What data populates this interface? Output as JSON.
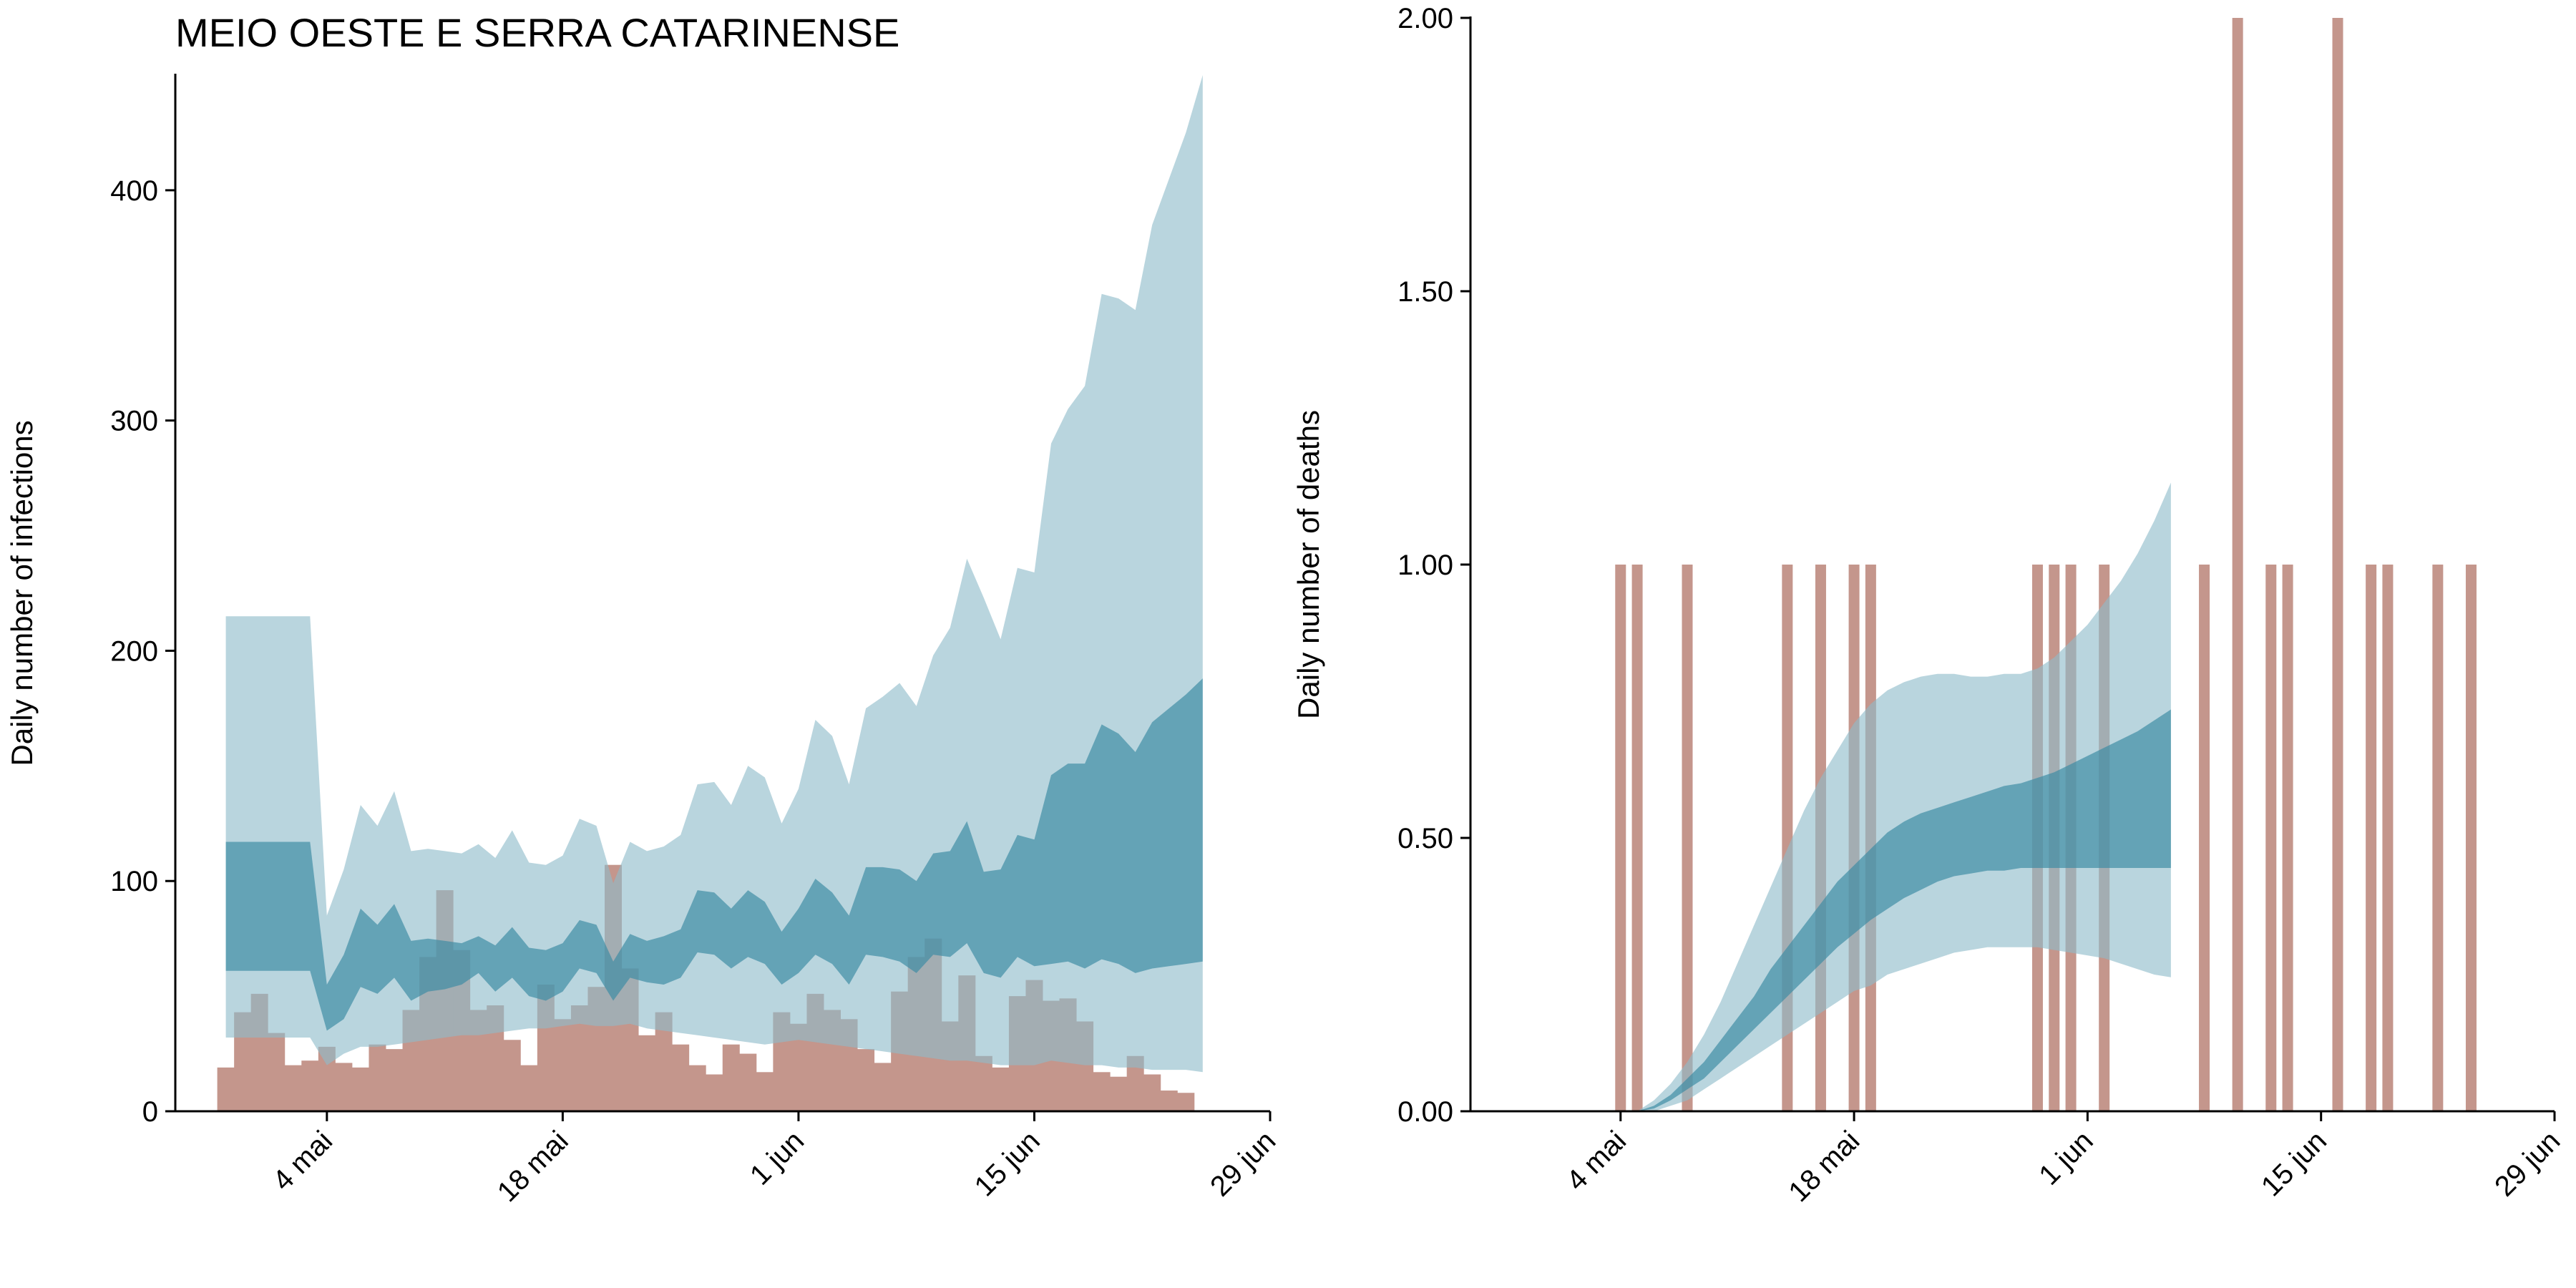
{
  "figure": {
    "title": "MEIO OESTE E SERRA CATARINENSE"
  },
  "colors": {
    "bar": "#c4968c",
    "band_outer": "#8ebbca",
    "band_inner": "#3d8aa4",
    "axis": "#000000"
  },
  "chart_data": [
    {
      "type": "bar",
      "panel": "infections",
      "ylabel": "Daily number of infections",
      "xlabel": "",
      "ylim": [
        0,
        450
      ],
      "yticks": [
        0,
        100,
        200,
        300,
        400
      ],
      "xlim": [
        "2020-04-25",
        "2020-06-29"
      ],
      "xticks": [
        {
          "date": "2020-05-04",
          "label": "4 mai"
        },
        {
          "date": "2020-05-18",
          "label": "18 mai"
        },
        {
          "date": "2020-06-01",
          "label": "1 jun"
        },
        {
          "date": "2020-06-15",
          "label": "15 jun"
        },
        {
          "date": "2020-06-29",
          "label": "29 jun"
        }
      ],
      "bars": {
        "start_date": "2020-04-28",
        "values": [
          19,
          43,
          51,
          34,
          20,
          22,
          28,
          21,
          19,
          29,
          27,
          44,
          67,
          96,
          70,
          44,
          46,
          31,
          20,
          55,
          40,
          46,
          54,
          107,
          62,
          33,
          43,
          29,
          20,
          16,
          29,
          25,
          17,
          43,
          38,
          51,
          44,
          40,
          27,
          21,
          52,
          67,
          75,
          39,
          59,
          24,
          19,
          50,
          57,
          48,
          49,
          39,
          17,
          15,
          24,
          16,
          9,
          8
        ]
      },
      "series": [
        {
          "name": "outer_band",
          "start_date": "2020-04-28",
          "upper": [
            215,
            215,
            215,
            215,
            215,
            215,
            85,
            105,
            133,
            124,
            139,
            113,
            114,
            113,
            112,
            116,
            110,
            122,
            108,
            107,
            111,
            127,
            124,
            99,
            117,
            113,
            115,
            120,
            142,
            143,
            133,
            150,
            145,
            125,
            140,
            170,
            163,
            142,
            175,
            180,
            186,
            176,
            198,
            210,
            240,
            223,
            205,
            236,
            234,
            290,
            305,
            315,
            355,
            353,
            348,
            385,
            405,
            425,
            450
          ],
          "lower": [
            32,
            32,
            32,
            32,
            32,
            32,
            20,
            25,
            28,
            28,
            29,
            30,
            31,
            32,
            33,
            33,
            34,
            35,
            36,
            36,
            37,
            38,
            37,
            37,
            38,
            36,
            35,
            34,
            33,
            32,
            31,
            30,
            29,
            30,
            31,
            30,
            29,
            28,
            27,
            26,
            25,
            24,
            23,
            22,
            22,
            21,
            20,
            20,
            20,
            22,
            21,
            20,
            20,
            19,
            19,
            18,
            18,
            18,
            17
          ]
        },
        {
          "name": "inner_band",
          "start_date": "2020-04-28",
          "upper": [
            117,
            117,
            117,
            117,
            117,
            117,
            55,
            68,
            88,
            81,
            90,
            74,
            75,
            74,
            73,
            76,
            72,
            80,
            71,
            70,
            73,
            83,
            81,
            65,
            77,
            74,
            76,
            79,
            96,
            95,
            88,
            96,
            91,
            78,
            88,
            101,
            95,
            85,
            106,
            106,
            105,
            100,
            112,
            113,
            126,
            104,
            105,
            120,
            118,
            146,
            151,
            151,
            168,
            164,
            156,
            169,
            175,
            181,
            188
          ],
          "lower": [
            61,
            61,
            61,
            61,
            61,
            61,
            35,
            40,
            54,
            51,
            58,
            48,
            52,
            53,
            55,
            60,
            52,
            58,
            50,
            48,
            52,
            62,
            60,
            48,
            58,
            56,
            55,
            58,
            69,
            68,
            62,
            67,
            64,
            55,
            60,
            68,
            64,
            55,
            68,
            67,
            65,
            60,
            68,
            67,
            73,
            60,
            58,
            67,
            63,
            64,
            65,
            62,
            66,
            64,
            60,
            62,
            63,
            64,
            65
          ]
        }
      ]
    },
    {
      "type": "bar",
      "panel": "deaths",
      "ylabel": "Daily number of deaths",
      "xlabel": "",
      "ylim": [
        0,
        2
      ],
      "yticks": [
        0,
        0.5,
        1,
        1.5,
        2
      ],
      "ytick_labels": [
        "0.00",
        "0.50",
        "1.00",
        "1.50",
        "2.00"
      ],
      "xlim": [
        "2020-04-25",
        "2020-06-29"
      ],
      "xticks": [
        {
          "date": "2020-05-04",
          "label": "4 mai"
        },
        {
          "date": "2020-05-18",
          "label": "18 mai"
        },
        {
          "date": "2020-06-01",
          "label": "1 jun"
        },
        {
          "date": "2020-06-15",
          "label": "15 jun"
        },
        {
          "date": "2020-06-29",
          "label": "29 jun"
        }
      ],
      "bars": {
        "events": [
          {
            "date": "2020-05-04",
            "value": 1
          },
          {
            "date": "2020-05-05",
            "value": 1
          },
          {
            "date": "2020-05-08",
            "value": 1
          },
          {
            "date": "2020-05-14",
            "value": 1
          },
          {
            "date": "2020-05-16",
            "value": 1
          },
          {
            "date": "2020-05-18",
            "value": 1
          },
          {
            "date": "2020-05-19",
            "value": 1
          },
          {
            "date": "2020-05-29",
            "value": 1
          },
          {
            "date": "2020-05-30",
            "value": 1
          },
          {
            "date": "2020-05-31",
            "value": 1
          },
          {
            "date": "2020-06-02",
            "value": 1
          },
          {
            "date": "2020-06-08",
            "value": 1
          },
          {
            "date": "2020-06-10",
            "value": 2
          },
          {
            "date": "2020-06-12",
            "value": 1
          },
          {
            "date": "2020-06-13",
            "value": 1
          },
          {
            "date": "2020-06-16",
            "value": 2
          },
          {
            "date": "2020-06-18",
            "value": 1
          },
          {
            "date": "2020-06-19",
            "value": 1
          },
          {
            "date": "2020-06-22",
            "value": 1
          },
          {
            "date": "2020-06-24",
            "value": 1
          }
        ]
      },
      "series": [
        {
          "name": "outer_band",
          "start_date": "2020-05-05",
          "upper": [
            0.0,
            0.02,
            0.05,
            0.09,
            0.14,
            0.2,
            0.27,
            0.34,
            0.41,
            0.48,
            0.55,
            0.61,
            0.66,
            0.71,
            0.745,
            0.77,
            0.785,
            0.795,
            0.8,
            0.8,
            0.795,
            0.795,
            0.8,
            0.8,
            0.81,
            0.83,
            0.86,
            0.89,
            0.93,
            0.97,
            1.02,
            1.08,
            1.15
          ],
          "lower": [
            0.0,
            0.0,
            0.01,
            0.02,
            0.04,
            0.06,
            0.08,
            0.1,
            0.12,
            0.14,
            0.16,
            0.18,
            0.2,
            0.22,
            0.23,
            0.25,
            0.26,
            0.27,
            0.28,
            0.29,
            0.295,
            0.3,
            0.3,
            0.3,
            0.3,
            0.295,
            0.29,
            0.285,
            0.28,
            0.27,
            0.26,
            0.25,
            0.245
          ]
        },
        {
          "name": "inner_band",
          "start_date": "2020-05-05",
          "upper": [
            0.0,
            0.01,
            0.03,
            0.06,
            0.09,
            0.13,
            0.17,
            0.21,
            0.26,
            0.3,
            0.34,
            0.38,
            0.42,
            0.45,
            0.48,
            0.51,
            0.53,
            0.545,
            0.555,
            0.565,
            0.575,
            0.585,
            0.595,
            0.6,
            0.61,
            0.62,
            0.635,
            0.65,
            0.665,
            0.68,
            0.695,
            0.715,
            0.735
          ],
          "lower": [
            0.0,
            0.005,
            0.02,
            0.04,
            0.06,
            0.09,
            0.12,
            0.15,
            0.18,
            0.21,
            0.24,
            0.27,
            0.3,
            0.325,
            0.35,
            0.37,
            0.39,
            0.405,
            0.42,
            0.43,
            0.435,
            0.44,
            0.44,
            0.445,
            0.445,
            0.445,
            0.445,
            0.445,
            0.445,
            0.445,
            0.445,
            0.445,
            0.445
          ]
        }
      ]
    }
  ]
}
